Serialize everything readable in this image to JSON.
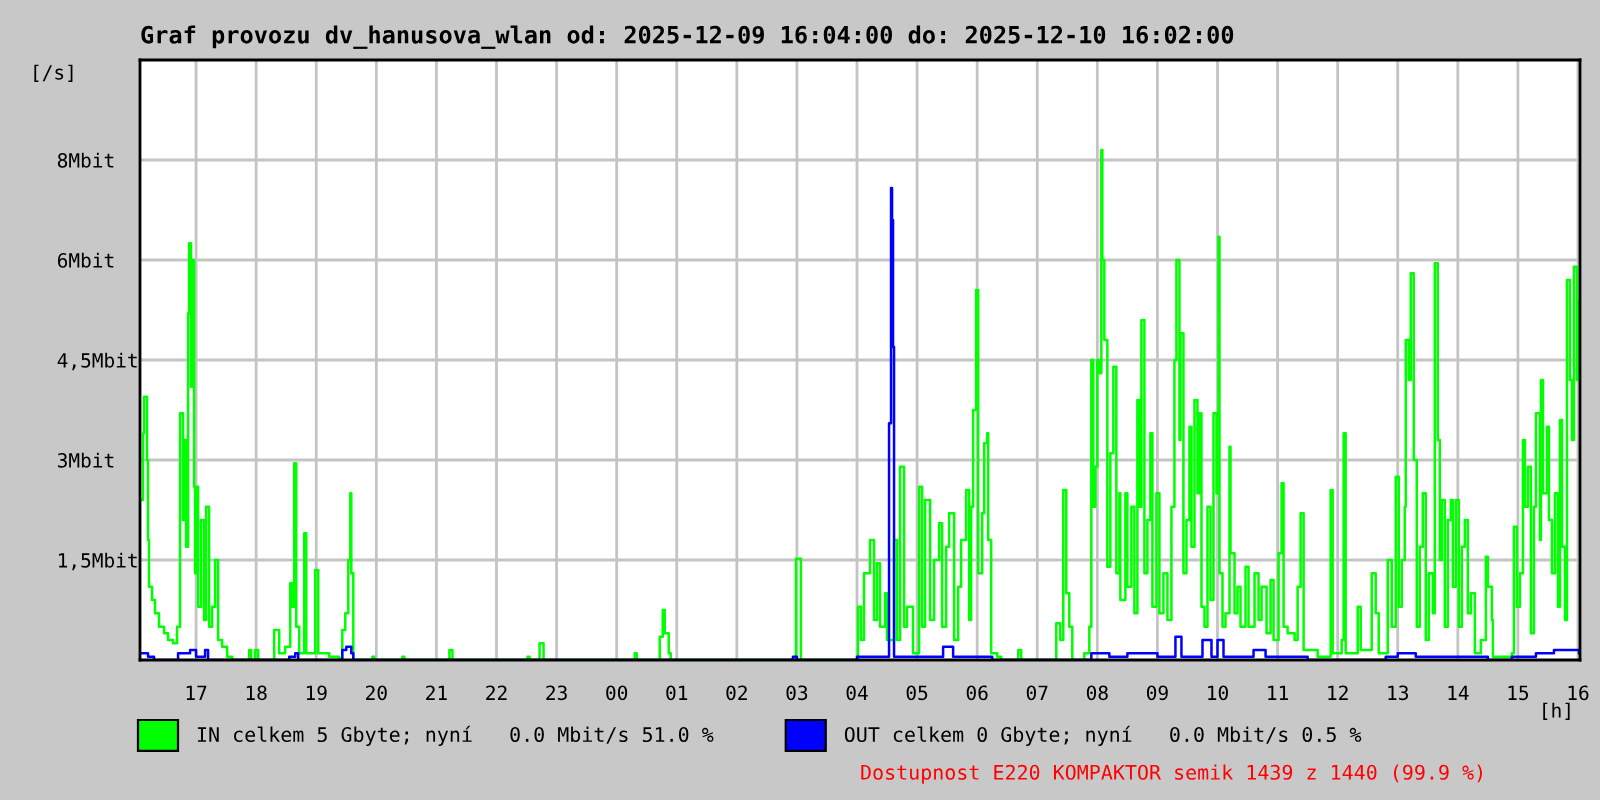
{
  "chart_data": {
    "type": "step",
    "title": "Graf provozu dv_hanusova_wlan od: 2025-12-09 16:04:00 do: 2025-12-10 16:02:00",
    "ylabel": "[/s]",
    "xlabel": "[h]",
    "series": [
      {
        "name": "IN celkem 5 Gbyte; nyní   0.0 Mbit/s 51.0 %",
        "color": "#00ff00",
        "x": [
          "2025-12-09T16:05",
          "2025-12-09T16:07",
          "2025-12-09T16:08",
          "2025-12-09T16:11",
          "2025-12-09T16:12",
          "2025-12-09T16:13",
          "2025-12-09T16:16",
          "2025-12-09T16:19",
          "2025-12-09T16:23",
          "2025-12-09T16:28",
          "2025-12-09T16:32",
          "2025-12-09T16:37",
          "2025-12-09T16:41",
          "2025-12-09T16:44",
          "2025-12-09T16:47",
          "2025-12-09T16:49",
          "2025-12-09T16:50",
          "2025-12-09T16:52",
          "2025-12-09T16:53",
          "2025-12-09T16:55",
          "2025-12-09T16:56",
          "2025-12-09T16:58",
          "2025-12-09T16:59",
          "2025-12-09T17:01",
          "2025-12-09T17:02",
          "2025-12-09T17:05",
          "2025-12-09T17:08",
          "2025-12-09T17:10",
          "2025-12-09T17:13",
          "2025-12-09T17:16",
          "2025-12-09T17:19",
          "2025-12-09T17:22",
          "2025-12-09T17:26",
          "2025-12-09T17:31",
          "2025-12-09T17:36",
          "2025-12-09T17:53",
          "2025-12-09T17:55",
          "2025-12-09T17:59",
          "2025-12-09T18:02",
          "2025-12-09T18:18",
          "2025-12-09T18:23",
          "2025-12-09T18:29",
          "2025-12-09T18:34",
          "2025-12-09T18:36",
          "2025-12-09T18:38",
          "2025-12-09T18:40",
          "2025-12-09T18:43",
          "2025-12-09T18:48",
          "2025-12-09T18:50",
          "2025-12-09T18:59",
          "2025-12-09T19:02",
          "2025-12-09T19:13",
          "2025-12-09T19:23",
          "2025-12-09T19:26",
          "2025-12-09T19:29",
          "2025-12-09T19:32",
          "2025-12-09T19:34",
          "2025-12-09T19:35",
          "2025-12-09T19:37",
          "2025-12-09T19:56",
          "2025-12-09T19:58",
          "2025-12-09T20:26",
          "2025-12-09T20:28",
          "2025-12-09T21:13",
          "2025-12-09T21:16",
          "2025-12-09T22:31",
          "2025-12-09T22:33",
          "2025-12-09T22:43",
          "2025-12-09T22:47",
          "2025-12-10T00:18",
          "2025-12-10T00:20",
          "2025-12-10T00:43",
          "2025-12-10T00:46",
          "2025-12-10T00:48",
          "2025-12-10T00:52",
          "2025-12-10T00:54",
          "2025-12-10T02:59",
          "2025-12-10T03:04",
          "2025-12-10T04:01",
          "2025-12-10T04:04",
          "2025-12-10T04:07",
          "2025-12-10T04:10",
          "2025-12-10T04:13",
          "2025-12-10T04:17",
          "2025-12-10T04:20",
          "2025-12-10T04:23",
          "2025-12-10T04:28",
          "2025-12-10T04:30",
          "2025-12-10T04:37",
          "2025-12-10T04:40",
          "2025-12-10T04:43",
          "2025-12-10T04:47",
          "2025-12-10T04:50",
          "2025-12-10T04:56",
          "2025-12-10T05:02",
          "2025-12-10T05:05",
          "2025-12-10T05:08",
          "2025-12-10T05:13",
          "2025-12-10T05:17",
          "2025-12-10T05:22",
          "2025-12-10T05:25",
          "2025-12-10T05:29",
          "2025-12-10T05:32",
          "2025-12-10T05:37",
          "2025-12-10T05:41",
          "2025-12-10T05:44",
          "2025-12-10T05:49",
          "2025-12-10T05:52",
          "2025-12-10T05:54",
          "2025-12-10T05:56",
          "2025-12-10T05:59",
          "2025-12-10T06:01",
          "2025-12-10T06:05",
          "2025-12-10T06:07",
          "2025-12-10T06:10",
          "2025-12-10T06:11",
          "2025-12-10T06:14",
          "2025-12-10T06:20",
          "2025-12-10T06:24",
          "2025-12-10T06:41",
          "2025-12-10T06:44",
          "2025-12-10T07:19",
          "2025-12-10T07:23",
          "2025-12-10T07:26",
          "2025-12-10T07:29",
          "2025-12-10T07:32",
          "2025-12-10T07:35",
          "2025-12-10T07:47",
          "2025-12-10T07:52",
          "2025-12-10T07:54",
          "2025-12-10T07:56",
          "2025-12-10T07:58",
          "2025-12-10T08:00",
          "2025-12-10T08:02",
          "2025-12-10T08:04",
          "2025-12-10T08:05",
          "2025-12-10T08:07",
          "2025-12-10T08:10",
          "2025-12-10T08:13",
          "2025-12-10T08:16",
          "2025-12-10T08:19",
          "2025-12-10T08:22",
          "2025-12-10T08:23",
          "2025-12-10T08:28",
          "2025-12-10T08:30",
          "2025-12-10T08:34",
          "2025-12-10T08:37",
          "2025-12-10T08:40",
          "2025-12-10T08:42",
          "2025-12-10T08:44",
          "2025-12-10T08:47",
          "2025-12-10T08:50",
          "2025-12-10T08:53",
          "2025-12-10T08:55",
          "2025-12-10T08:59",
          "2025-12-10T09:02",
          "2025-12-10T09:06",
          "2025-12-10T09:10",
          "2025-12-10T09:14",
          "2025-12-10T09:17",
          "2025-12-10T09:19",
          "2025-12-10T09:22",
          "2025-12-10T09:23",
          "2025-12-10T09:26",
          "2025-12-10T09:29",
          "2025-12-10T09:32",
          "2025-12-10T09:34",
          "2025-12-10T09:37",
          "2025-12-10T09:40",
          "2025-12-10T09:42",
          "2025-12-10T09:44",
          "2025-12-10T09:47",
          "2025-12-10T09:50",
          "2025-12-10T09:53",
          "2025-12-10T09:56",
          "2025-12-10T09:59",
          "2025-12-10T10:01",
          "2025-12-10T10:02",
          "2025-12-10T10:05",
          "2025-12-10T10:08",
          "2025-12-10T10:12",
          "2025-12-10T10:13",
          "2025-12-10T10:17",
          "2025-12-10T10:20",
          "2025-12-10T10:23",
          "2025-12-10T10:28",
          "2025-12-10T10:31",
          "2025-12-10T10:37",
          "2025-12-10T10:41",
          "2025-12-10T10:44",
          "2025-12-10T10:49",
          "2025-12-10T10:53",
          "2025-12-10T10:56",
          "2025-12-10T11:01",
          "2025-12-10T11:04",
          "2025-12-10T11:06",
          "2025-12-10T11:10",
          "2025-12-10T11:17",
          "2025-12-10T11:20",
          "2025-12-10T11:23",
          "2025-12-10T11:26",
          "2025-12-10T11:40",
          "2025-12-10T11:53",
          "2025-12-10T11:55",
          "2025-12-10T12:04",
          "2025-12-10T12:06",
          "2025-12-10T12:08",
          "2025-12-10T12:20",
          "2025-12-10T12:23",
          "2025-12-10T12:34",
          "2025-12-10T12:38",
          "2025-12-10T12:41",
          "2025-12-10T12:50",
          "2025-12-10T12:54",
          "2025-12-10T12:58",
          "2025-12-10T13:01",
          "2025-12-10T13:04",
          "2025-12-10T13:07",
          "2025-12-10T13:08",
          "2025-12-10T13:11",
          "2025-12-10T13:13",
          "2025-12-10T13:16",
          "2025-12-10T13:19",
          "2025-12-10T13:22",
          "2025-12-10T13:25",
          "2025-12-10T13:28",
          "2025-12-10T13:31",
          "2025-12-10T13:35",
          "2025-12-10T13:37",
          "2025-12-10T13:40",
          "2025-12-10T13:42",
          "2025-12-10T13:44",
          "2025-12-10T13:47",
          "2025-12-10T13:50",
          "2025-12-10T13:53",
          "2025-12-10T13:55",
          "2025-12-10T13:58",
          "2025-12-10T14:01",
          "2025-12-10T14:04",
          "2025-12-10T14:07",
          "2025-12-10T14:10",
          "2025-12-10T14:13",
          "2025-12-10T14:17",
          "2025-12-10T14:23",
          "2025-12-10T14:28",
          "2025-12-10T14:30",
          "2025-12-10T14:34",
          "2025-12-10T14:35",
          "2025-12-10T14:54",
          "2025-12-10T14:56",
          "2025-12-10T14:59",
          "2025-12-10T15:02",
          "2025-12-10T15:05",
          "2025-12-10T15:07",
          "2025-12-10T15:10",
          "2025-12-10T15:13",
          "2025-12-10T15:16",
          "2025-12-10T15:18",
          "2025-12-10T15:22",
          "2025-12-10T15:23",
          "2025-12-10T15:25",
          "2025-12-10T15:29",
          "2025-12-10T15:31",
          "2025-12-10T15:34",
          "2025-12-10T15:37",
          "2025-12-10T15:40",
          "2025-12-10T15:42",
          "2025-12-10T15:44",
          "2025-12-10T15:47",
          "2025-12-10T15:49",
          "2025-12-10T15:52",
          "2025-12-10T15:54",
          "2025-12-10T15:56",
          "2025-12-10T15:59",
          "2025-12-10T16:01"
        ],
        "values": [
          2.4,
          3.4,
          3.95,
          3.0,
          1.8,
          1.1,
          0.9,
          0.7,
          0.5,
          0.4,
          0.3,
          0.25,
          0.5,
          3.7,
          2.1,
          3.3,
          1.7,
          5.2,
          6.25,
          4.1,
          6.0,
          2.6,
          1.3,
          2.6,
          0.8,
          2.1,
          0.6,
          2.3,
          0.5,
          0.8,
          1.5,
          0.3,
          0.2,
          0.05,
          0,
          0.15,
          0,
          0.15,
          0,
          0.45,
          0.1,
          0.2,
          1.15,
          0.8,
          2.95,
          0.5,
          0.1,
          1.9,
          0.1,
          1.35,
          0.1,
          0.05,
          0,
          0.45,
          0.7,
          1.5,
          2.5,
          1.3,
          0,
          0.05,
          0,
          0.05,
          0,
          0.15,
          0,
          0.05,
          0,
          0.25,
          0,
          0.1,
          0,
          0.35,
          0.75,
          0.4,
          0.1,
          0,
          1.52,
          0,
          0.8,
          0.3,
          1.3,
          1.3,
          1.8,
          0.6,
          1.45,
          0.5,
          1.0,
          0.3,
          1.8,
          0.3,
          2.9,
          0.5,
          0.8,
          0.1,
          2.6,
          0.5,
          2.4,
          0.6,
          1.5,
          2.05,
          0.5,
          1.7,
          2.2,
          0.3,
          1.1,
          1.8,
          2.55,
          0.6,
          2.3,
          3.75,
          5.55,
          1.3,
          2.2,
          3.25,
          3.4,
          1.8,
          0.1,
          0.05,
          0,
          0.15,
          0,
          0.55,
          0.3,
          2.55,
          1.0,
          0.5,
          0,
          0.1,
          0.5,
          4.5,
          2.3,
          2.9,
          4.5,
          4.3,
          7.65,
          6.0,
          4.8,
          1.4,
          3.1,
          4.4,
          1.3,
          2.5,
          0.9,
          2.5,
          1.1,
          2.3,
          0.7,
          3.9,
          2.3,
          5.1,
          1.3,
          2.1,
          3.4,
          0.8,
          2.5,
          0.7,
          1.3,
          0.6,
          2.3,
          4.5,
          6.0,
          3.3,
          4.9,
          1.3,
          2.1,
          3.5,
          1.7,
          3.9,
          2.5,
          3.7,
          0.8,
          0.5,
          2.3,
          0.9,
          3.7,
          2.5,
          6.35,
          1.3,
          0.5,
          0.7,
          3.2,
          1.6,
          0.7,
          1.1,
          0.5,
          1.4,
          0.5,
          1.3,
          0.6,
          1.1,
          0.4,
          1.2,
          0.3,
          1.6,
          2.65,
          0.5,
          0.4,
          0.3,
          1.1,
          2.2,
          0.15,
          0.05,
          2.55,
          0.1,
          0.3,
          3.4,
          0.1,
          0.8,
          0.15,
          1.3,
          0.7,
          0.1,
          1.5,
          0.5,
          2.75,
          0.8,
          1.5,
          2.3,
          4.8,
          4.2,
          5.8,
          3.0,
          0.5,
          1.7,
          2.5,
          0.3,
          1.3,
          0.7,
          5.95,
          3.3,
          1.5,
          2.4,
          0.5,
          2.1,
          2.4,
          1.1,
          2.4,
          0.5,
          1.7,
          2.1,
          0.7,
          1.0,
          0.1,
          0.3,
          1.55,
          1.1,
          0.6,
          0.05,
          0.1,
          2.0,
          0.8,
          1.3,
          3.3,
          2.3,
          2.9,
          0.4,
          2.3,
          3.7,
          1.8,
          4.2,
          2.5,
          3.5,
          2.1,
          1.3,
          2.5,
          0.8,
          3.6,
          1.7,
          0.6,
          5.7,
          4.2,
          3.3,
          5.9,
          4.2,
          5.4
        ]
      },
      {
        "name": "OUT celkem 0 Gbyte; nyní   0.0 Mbit/s 0.5 %",
        "color": "#0000ff",
        "x": [
          "2025-12-09T16:04",
          "2025-12-09T16:12",
          "2025-12-09T16:18",
          "2025-12-09T16:42",
          "2025-12-09T16:54",
          "2025-12-09T17:00",
          "2025-12-09T17:09",
          "2025-12-09T17:12",
          "2025-12-09T18:33",
          "2025-12-09T18:39",
          "2025-12-09T18:42",
          "2025-12-09T19:26",
          "2025-12-09T19:30",
          "2025-12-09T19:35",
          "2025-12-09T19:37",
          "2025-12-10T02:56",
          "2025-12-10T03:00",
          "2025-12-10T04:00",
          "2025-12-10T04:12",
          "2025-12-10T04:32",
          "2025-12-10T04:34",
          "2025-12-10T04:35",
          "2025-12-10T04:36",
          "2025-12-10T04:37",
          "2025-12-10T04:48",
          "2025-12-10T05:26",
          "2025-12-10T05:30",
          "2025-12-10T05:36",
          "2025-12-10T06:00",
          "2025-12-10T06:15",
          "2025-12-10T07:54",
          "2025-12-10T08:12",
          "2025-12-10T08:30",
          "2025-12-10T09:00",
          "2025-12-10T09:18",
          "2025-12-10T09:24",
          "2025-12-10T09:45",
          "2025-12-10T09:54",
          "2025-12-10T10:00",
          "2025-12-10T10:06",
          "2025-12-10T10:36",
          "2025-12-10T10:48",
          "2025-12-10T11:18",
          "2025-12-10T11:30",
          "2025-12-10T12:48",
          "2025-12-10T13:00",
          "2025-12-10T13:18",
          "2025-12-10T14:00",
          "2025-12-10T14:30",
          "2025-12-10T14:54",
          "2025-12-10T15:18",
          "2025-12-10T15:36",
          "2025-12-10T15:54",
          "2025-12-10T16:01"
        ],
        "values": [
          0.1,
          0.05,
          0,
          0.1,
          0.15,
          0.05,
          0.15,
          0,
          0.05,
          0.1,
          0,
          0.15,
          0.2,
          0.1,
          0,
          0.05,
          0,
          0.05,
          0.05,
          3.55,
          7.08,
          6.6,
          4.7,
          0.05,
          0.05,
          0.2,
          0.2,
          0.05,
          0.05,
          0,
          0.1,
          0.05,
          0.1,
          0.05,
          0.35,
          0.05,
          0.3,
          0.05,
          0.3,
          0.05,
          0.15,
          0.05,
          0.05,
          0,
          0.05,
          0.1,
          0.05,
          0.05,
          0,
          0.05,
          0.1,
          0.15,
          0.15,
          0.1
        ]
      }
    ],
    "xlim": [
      "2025-12-09T16:04",
      "2025-12-10T16:02"
    ],
    "xticks": [
      {
        "value": "2025-12-09T17:00",
        "label": "17"
      },
      {
        "value": "2025-12-09T18:00",
        "label": "18"
      },
      {
        "value": "2025-12-09T19:00",
        "label": "19"
      },
      {
        "value": "2025-12-09T20:00",
        "label": "20"
      },
      {
        "value": "2025-12-09T21:00",
        "label": "21"
      },
      {
        "value": "2025-12-09T22:00",
        "label": "22"
      },
      {
        "value": "2025-12-09T23:00",
        "label": "23"
      },
      {
        "value": "2025-12-10T00:00",
        "label": "00"
      },
      {
        "value": "2025-12-10T01:00",
        "label": "01"
      },
      {
        "value": "2025-12-10T02:00",
        "label": "02"
      },
      {
        "value": "2025-12-10T03:00",
        "label": "03"
      },
      {
        "value": "2025-12-10T04:00",
        "label": "04"
      },
      {
        "value": "2025-12-10T05:00",
        "label": "05"
      },
      {
        "value": "2025-12-10T06:00",
        "label": "06"
      },
      {
        "value": "2025-12-10T07:00",
        "label": "07"
      },
      {
        "value": "2025-12-10T08:00",
        "label": "08"
      },
      {
        "value": "2025-12-10T09:00",
        "label": "09"
      },
      {
        "value": "2025-12-10T10:00",
        "label": "10"
      },
      {
        "value": "2025-12-10T11:00",
        "label": "11"
      },
      {
        "value": "2025-12-10T12:00",
        "label": "12"
      },
      {
        "value": "2025-12-10T13:00",
        "label": "13"
      },
      {
        "value": "2025-12-10T14:00",
        "label": "14"
      },
      {
        "value": "2025-12-10T15:00",
        "label": "15"
      },
      {
        "value": "2025-12-10T16:00",
        "label": "16"
      }
    ],
    "ylim": [
      0,
      9
    ],
    "yticks": [
      {
        "value": 1.5,
        "label": "1,5Mbit"
      },
      {
        "value": 3,
        "label": "3Mbit"
      },
      {
        "value": 4.5,
        "label": "4,5Mbit"
      },
      {
        "value": 6,
        "label": "6Mbit"
      },
      {
        "value": 7.5,
        "label": "8Mbit"
      }
    ],
    "grid": true,
    "legend": "bottom",
    "annotations": [
      "Dostupnost E220 KOMPAKTOR semik 1439 z 1440 (99.9 %)"
    ]
  }
}
